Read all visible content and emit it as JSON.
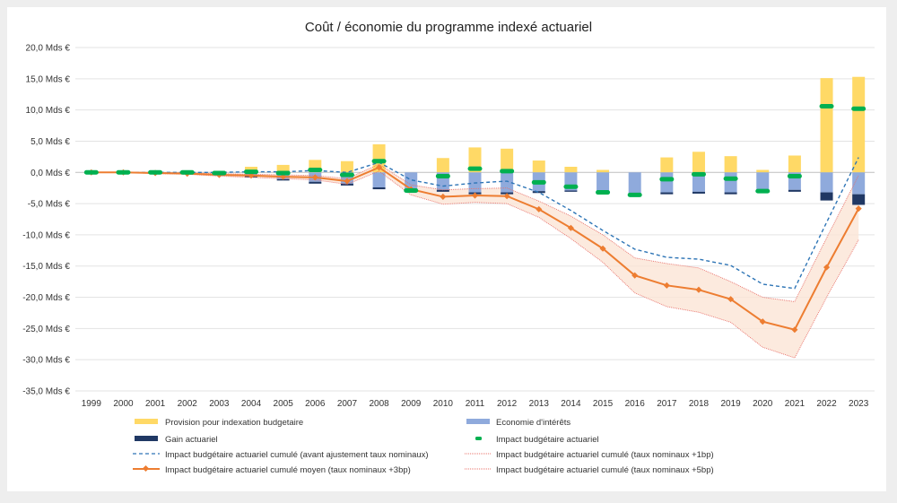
{
  "chart_data": {
    "type": "bar+line",
    "title": "Coût / économie du programme indexé actuariel",
    "xlabel": "",
    "ylabel": "",
    "ylim": [
      -35,
      20
    ],
    "yticks": [
      "20,0 Mds €",
      "15,0 Mds €",
      "10,0 Mds €",
      "5,0 Mds €",
      "0,0 Mds €",
      "-5,0 Mds €",
      "-10,0 Mds €",
      "-15,0 Mds €",
      "-20,0 Mds €",
      "-25,0 Mds €",
      "-30,0 Mds €",
      "-35,0 Mds €"
    ],
    "ytick_values": [
      20,
      15,
      10,
      5,
      0,
      -5,
      -10,
      -15,
      -20,
      -25,
      -30,
      -35
    ],
    "grid": true,
    "legend_position": "bottom",
    "categories": [
      "1999",
      "2000",
      "2001",
      "2002",
      "2003",
      "2004",
      "2005",
      "2006",
      "2007",
      "2008",
      "2009",
      "2010",
      "2011",
      "2012",
      "2013",
      "2014",
      "2015",
      "2016",
      "2017",
      "2018",
      "2019",
      "2020",
      "2021",
      "2022",
      "2023"
    ],
    "series": [
      {
        "name": "Provision pour indexation budgetaire",
        "kind": "stacked-bar",
        "color": "#ffd966",
        "values": [
          0,
          0,
          0,
          0,
          0,
          0.9,
          1.2,
          2.0,
          1.8,
          4.5,
          0,
          2.3,
          4.0,
          3.8,
          1.9,
          0.9,
          0.4,
          0,
          2.4,
          3.3,
          2.6,
          0.4,
          2.7,
          15.1,
          15.3
        ]
      },
      {
        "name": "Economie d'intérêts",
        "kind": "stacked-bar",
        "color": "#8faadc",
        "values": [
          0,
          0,
          0,
          0,
          -0.2,
          -0.6,
          -1.1,
          -1.5,
          -1.8,
          -2.4,
          -2.8,
          -2.8,
          -3.2,
          -3.2,
          -3.0,
          -2.9,
          -3.1,
          -3.5,
          -3.2,
          -3.1,
          -3.2,
          -3.0,
          -2.8,
          -3.2,
          -3.5
        ]
      },
      {
        "name": "Gain actuariel",
        "kind": "stacked-bar",
        "color": "#203864",
        "values": [
          0,
          0,
          0,
          0,
          0,
          -0.2,
          -0.2,
          -0.3,
          -0.3,
          -0.3,
          0,
          -0.3,
          -0.3,
          -0.3,
          -0.3,
          -0.2,
          0,
          0,
          -0.3,
          -0.3,
          -0.3,
          0,
          -0.3,
          -1.3,
          -1.7
        ]
      },
      {
        "name": "Impact budgétaire actuariel",
        "kind": "marker",
        "color": "#00b050",
        "values": [
          0,
          0,
          0,
          0,
          -0.1,
          0.1,
          -0.1,
          0.4,
          -0.4,
          1.8,
          -2.9,
          -0.6,
          0.6,
          0.2,
          -1.6,
          -2.3,
          -3.2,
          -3.6,
          -1.1,
          -0.3,
          -1.0,
          -3.0,
          -0.6,
          10.6,
          10.2
        ]
      },
      {
        "name": "Impact budgétaire actuariel cumulé (avant ajustement taux nominaux)",
        "kind": "dashed-line",
        "color": "#2e75b6",
        "values": [
          0,
          0,
          0,
          0,
          0,
          0.1,
          0.1,
          0.3,
          0,
          1.6,
          -1.2,
          -2.2,
          -1.7,
          -1.4,
          -3.2,
          -6.1,
          -9.3,
          -12.3,
          -13.6,
          -13.9,
          -14.9,
          -17.9,
          -18.6,
          -8.0,
          2.4
        ]
      },
      {
        "name": "Impact budgétaire actuariel cumulé (taux nominaux +1bp)",
        "kind": "dotted-line",
        "color": "#e8706a",
        "values": [
          0,
          0,
          0,
          -0.1,
          -0.2,
          -0.3,
          -0.4,
          -0.5,
          -1.0,
          1.3,
          -2.0,
          -2.8,
          -2.6,
          -2.5,
          -4.6,
          -7.0,
          -10.0,
          -13.7,
          -14.6,
          -15.3,
          -17.5,
          -20.0,
          -20.7,
          -10.5,
          -0.5
        ]
      },
      {
        "name": "Impact budgétaire actuariel cumulé moyen (taux nominaux +3bp)",
        "kind": "line-marker",
        "color": "#ed7d31",
        "values": [
          0,
          0,
          -0.1,
          -0.2,
          -0.4,
          -0.5,
          -0.7,
          -0.8,
          -1.4,
          0.8,
          -2.7,
          -3.9,
          -3.7,
          -3.8,
          -5.9,
          -8.9,
          -12.2,
          -16.5,
          -18.1,
          -18.8,
          -20.3,
          -23.9,
          -25.2,
          -15.2,
          -5.8
        ]
      },
      {
        "name": "Impact budgétaire actuariel cumulé (taux nominaux +5bp)",
        "kind": "dotted-line",
        "color": "#e8706a",
        "values": [
          0,
          0,
          -0.2,
          -0.3,
          -0.6,
          -0.8,
          -1.0,
          -1.2,
          -1.9,
          0.2,
          -3.6,
          -5.1,
          -4.8,
          -5.0,
          -7.2,
          -10.6,
          -14.4,
          -19.3,
          -21.5,
          -22.4,
          -24.0,
          -28.0,
          -29.7,
          -20.0,
          -10.8
        ]
      }
    ],
    "band_color": "#fbe5d6"
  }
}
